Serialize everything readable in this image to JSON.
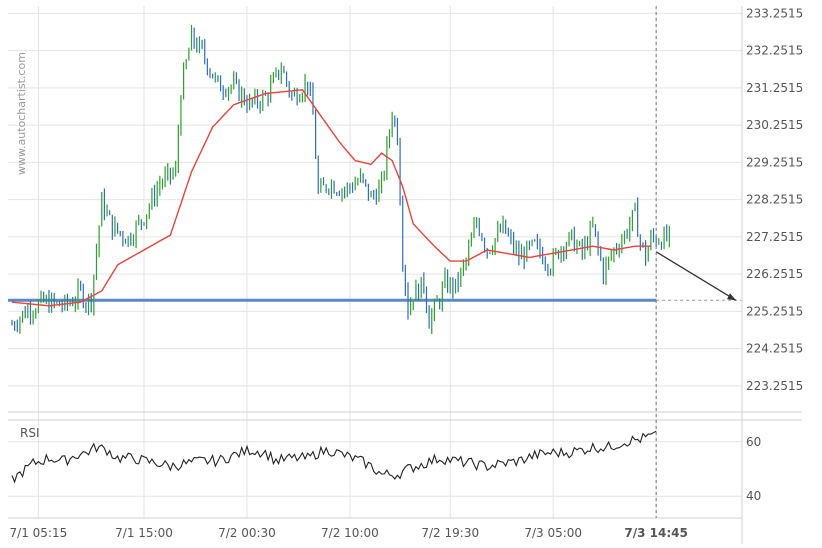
{
  "watermark": "www.autochartist.com",
  "chart_data": [
    {
      "type": "candlestick",
      "price_ticks": [
        "233.2515",
        "232.2515",
        "231.2515",
        "230.2515",
        "229.2515",
        "228.2515",
        "227.2515",
        "226.2515",
        "225.2515",
        "224.2515",
        "223.2515"
      ],
      "price_tick_values": [
        233.2515,
        232.2515,
        231.2515,
        230.2515,
        229.2515,
        228.2515,
        227.2515,
        226.2515,
        225.2515,
        224.2515,
        223.2515
      ],
      "ylim": [
        222.55,
        233.45
      ],
      "x_ticks": [
        "7/1 05:15",
        "7/1 15:00",
        "7/2 00:30",
        "7/2 10:00",
        "7/2 19:30",
        "7/3 05:00",
        "7/3 14:45"
      ],
      "x_tick_index": [
        10,
        50,
        89,
        128,
        166,
        205,
        244
      ],
      "bar_count": 250,
      "close_path_anchors": [
        [
          0,
          224.9
        ],
        [
          6,
          225.3
        ],
        [
          12,
          225.5
        ],
        [
          20,
          225.4
        ],
        [
          24,
          225.6
        ],
        [
          26,
          225.8
        ],
        [
          28,
          225.5
        ],
        [
          30,
          225.6
        ],
        [
          34,
          228.2
        ],
        [
          38,
          227.5
        ],
        [
          44,
          227.2
        ],
        [
          50,
          227.8
        ],
        [
          56,
          228.7
        ],
        [
          62,
          229.0
        ],
        [
          64,
          231.2
        ],
        [
          66,
          231.9
        ],
        [
          68,
          232.6
        ],
        [
          72,
          232.2
        ],
        [
          78,
          231.3
        ],
        [
          84,
          231.3
        ],
        [
          90,
          230.8
        ],
        [
          96,
          231.0
        ],
        [
          102,
          231.8
        ],
        [
          106,
          231.0
        ],
        [
          112,
          231.4
        ],
        [
          114,
          230.5
        ],
        [
          116,
          228.4
        ],
        [
          120,
          228.7
        ],
        [
          126,
          228.5
        ],
        [
          132,
          228.8
        ],
        [
          136,
          228.3
        ],
        [
          140,
          228.6
        ],
        [
          144,
          230.6
        ],
        [
          146,
          230.0
        ],
        [
          148,
          226.7
        ],
        [
          150,
          225.3
        ],
        [
          152,
          225.7
        ],
        [
          156,
          226.0
        ],
        [
          158,
          225.0
        ],
        [
          162,
          225.6
        ],
        [
          164,
          226.0
        ],
        [
          168,
          225.9
        ],
        [
          172,
          226.6
        ],
        [
          176,
          227.7
        ],
        [
          180,
          226.9
        ],
        [
          186,
          227.5
        ],
        [
          192,
          226.7
        ],
        [
          198,
          227.0
        ],
        [
          204,
          226.5
        ],
        [
          208,
          227.0
        ],
        [
          212,
          227.2
        ],
        [
          216,
          226.8
        ],
        [
          220,
          227.5
        ],
        [
          224,
          226.3
        ],
        [
          228,
          226.9
        ],
        [
          232,
          227.3
        ],
        [
          236,
          227.9
        ],
        [
          238,
          227.1
        ],
        [
          240,
          226.7
        ],
        [
          242,
          227.2
        ]
      ],
      "ma_path_anchors": [
        [
          0,
          225.5
        ],
        [
          14,
          225.4
        ],
        [
          26,
          225.5
        ],
        [
          34,
          225.8
        ],
        [
          40,
          226.5
        ],
        [
          50,
          226.9
        ],
        [
          60,
          227.3
        ],
        [
          68,
          229.0
        ],
        [
          76,
          230.2
        ],
        [
          84,
          230.8
        ],
        [
          96,
          231.1
        ],
        [
          110,
          231.2
        ],
        [
          116,
          230.6
        ],
        [
          124,
          229.8
        ],
        [
          130,
          229.3
        ],
        [
          136,
          229.2
        ],
        [
          140,
          229.5
        ],
        [
          144,
          229.3
        ],
        [
          148,
          228.6
        ],
        [
          152,
          227.6
        ],
        [
          160,
          227.0
        ],
        [
          166,
          226.6
        ],
        [
          172,
          226.6
        ],
        [
          180,
          226.9
        ],
        [
          188,
          226.8
        ],
        [
          196,
          226.7
        ],
        [
          204,
          226.8
        ],
        [
          212,
          226.9
        ],
        [
          220,
          227.0
        ],
        [
          228,
          226.9
        ],
        [
          236,
          227.0
        ],
        [
          242,
          227.0
        ]
      ],
      "support_level": 225.55,
      "forecast_end_price": 225.55,
      "rsi_ticks": [
        "60",
        "40"
      ],
      "rsi_tick_values": [
        60,
        40
      ],
      "rsi_ylim": [
        32,
        68
      ],
      "rsi_label": "RSI",
      "rsi_anchors": [
        [
          0,
          46
        ],
        [
          8,
          52
        ],
        [
          14,
          54
        ],
        [
          20,
          53
        ],
        [
          24,
          55
        ],
        [
          28,
          56
        ],
        [
          32,
          58
        ],
        [
          36,
          57
        ],
        [
          40,
          54
        ],
        [
          46,
          54
        ],
        [
          50,
          53
        ],
        [
          56,
          52
        ],
        [
          60,
          51
        ],
        [
          66,
          52
        ],
        [
          72,
          53
        ],
        [
          78,
          53
        ],
        [
          84,
          55
        ],
        [
          90,
          57
        ],
        [
          96,
          56
        ],
        [
          100,
          53
        ],
        [
          106,
          54
        ],
        [
          112,
          54
        ],
        [
          116,
          56
        ],
        [
          120,
          57
        ],
        [
          126,
          55
        ],
        [
          132,
          53
        ],
        [
          136,
          51
        ],
        [
          140,
          48
        ],
        [
          146,
          48
        ],
        [
          150,
          50
        ],
        [
          156,
          52
        ],
        [
          162,
          54
        ],
        [
          168,
          53
        ],
        [
          174,
          52
        ],
        [
          180,
          51
        ],
        [
          186,
          52
        ],
        [
          192,
          53
        ],
        [
          198,
          55
        ],
        [
          204,
          56
        ],
        [
          210,
          56
        ],
        [
          216,
          57
        ],
        [
          220,
          58
        ],
        [
          226,
          58
        ],
        [
          232,
          60
        ],
        [
          238,
          61
        ],
        [
          242,
          62
        ]
      ],
      "grid": true
    }
  ],
  "colors": {
    "bull": "#2e9e2e",
    "bear": "#2c6fb7",
    "ma": "#e8443a",
    "support": "#5b88c7",
    "rsi": "#222222",
    "grid": "#e4e4e4",
    "axis": "#d0d0d0"
  }
}
